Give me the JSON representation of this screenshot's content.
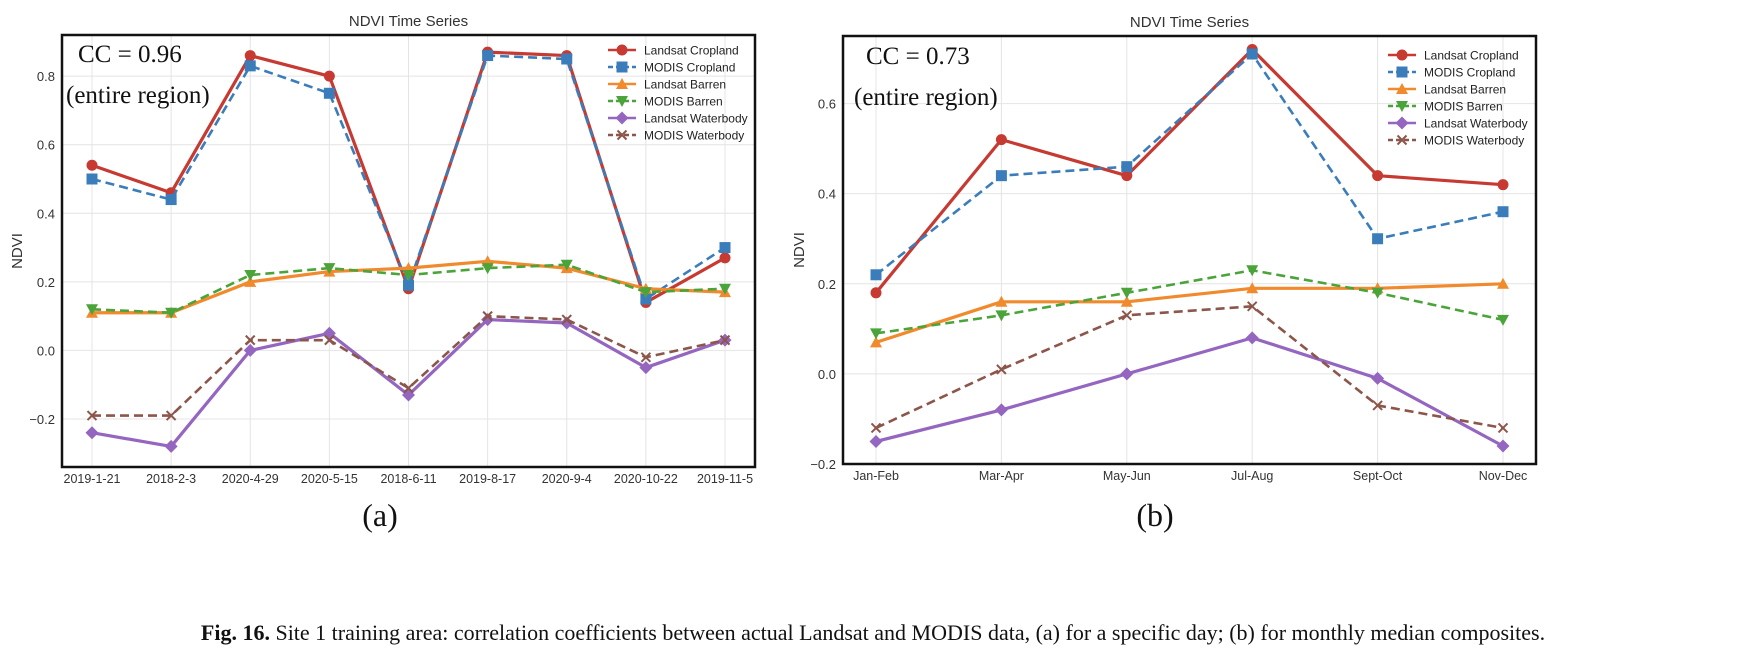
{
  "colors": {
    "landsat_cropland": "#c63a32",
    "modis_cropland": "#3b7dbb",
    "landsat_barren": "#f08a2c",
    "modis_barren": "#4aa43a",
    "landsat_waterbody": "#9466c0",
    "modis_waterbody": "#8c564b"
  },
  "caption": {
    "label": "Fig. 16.",
    "text": "Site 1 training area: correlation coefficients between actual Landsat and MODIS data, (a) for a specific day; (b) for monthly median composites."
  },
  "chart_data": [
    {
      "type": "line",
      "panel_label": "(a)",
      "title": "NDVI Time Series",
      "ylabel": "NDVI",
      "xlabel": "",
      "ylim": [
        -0.34,
        0.92
      ],
      "yticks": [
        -0.2,
        0.0,
        0.2,
        0.4,
        0.6,
        0.8
      ],
      "ytick_labels": [
        "−0.2",
        "0.0",
        "0.2",
        "0.4",
        "0.6",
        "0.8"
      ],
      "grid": true,
      "legend_position": "top-right",
      "annotation": [
        "CC = 0.96",
        "(entire region)"
      ],
      "categories": [
        "2019-1-21",
        "2018-2-3",
        "2020-4-29",
        "2020-5-15",
        "2018-6-11",
        "2019-8-17",
        "2020-9-4",
        "2020-10-22",
        "2019-11-5"
      ],
      "series": [
        {
          "name": "Landsat Cropland",
          "color": "#c63a32",
          "marker": "circle",
          "dash": "solid",
          "values": [
            0.54,
            0.46,
            0.86,
            0.8,
            0.18,
            0.87,
            0.86,
            0.14,
            0.27
          ]
        },
        {
          "name": "MODIS Cropland",
          "color": "#3b7dbb",
          "marker": "square",
          "dash": "dashed",
          "values": [
            0.5,
            0.44,
            0.83,
            0.75,
            0.19,
            0.86,
            0.85,
            0.15,
            0.3
          ]
        },
        {
          "name": "Landsat Barren",
          "color": "#f08a2c",
          "marker": "triangle-up",
          "dash": "solid",
          "values": [
            0.11,
            0.11,
            0.2,
            0.23,
            0.24,
            0.26,
            0.24,
            0.18,
            0.17
          ]
        },
        {
          "name": "MODIS Barren",
          "color": "#4aa43a",
          "marker": "triangle-down",
          "dash": "dashed",
          "values": [
            0.12,
            0.11,
            0.22,
            0.24,
            0.22,
            0.24,
            0.25,
            0.17,
            0.18
          ]
        },
        {
          "name": "Landsat Waterbody",
          "color": "#9466c0",
          "marker": "diamond",
          "dash": "solid",
          "values": [
            -0.24,
            -0.28,
            0.0,
            0.05,
            -0.13,
            0.09,
            0.08,
            -0.05,
            0.03
          ]
        },
        {
          "name": "MODIS Waterbody",
          "color": "#8c564b",
          "marker": "x",
          "dash": "dashed",
          "values": [
            -0.19,
            -0.19,
            0.03,
            0.03,
            -0.11,
            0.1,
            0.09,
            -0.02,
            0.03
          ]
        }
      ]
    },
    {
      "type": "line",
      "panel_label": "(b)",
      "title": "NDVI Time Series",
      "ylabel": "NDVI",
      "xlabel": "",
      "ylim": [
        -0.2,
        0.75
      ],
      "yticks": [
        -0.2,
        0.0,
        0.2,
        0.4,
        0.6
      ],
      "ytick_labels": [
        "−0.2",
        "0.0",
        "0.2",
        "0.4",
        "0.6"
      ],
      "grid": true,
      "legend_position": "top-right",
      "annotation": [
        "CC = 0.73",
        "(entire region)"
      ],
      "categories": [
        "Jan-Feb",
        "Mar-Apr",
        "May-Jun",
        "Jul-Aug",
        "Sept-Oct",
        "Nov-Dec"
      ],
      "series": [
        {
          "name": "Landsat Cropland",
          "color": "#c63a32",
          "marker": "circle",
          "dash": "solid",
          "values": [
            0.18,
            0.52,
            0.44,
            0.72,
            0.44,
            0.42
          ]
        },
        {
          "name": "MODIS Cropland",
          "color": "#3b7dbb",
          "marker": "square",
          "dash": "dashed",
          "values": [
            0.22,
            0.44,
            0.46,
            0.71,
            0.3,
            0.36
          ]
        },
        {
          "name": "Landsat Barren",
          "color": "#f08a2c",
          "marker": "triangle-up",
          "dash": "solid",
          "values": [
            0.07,
            0.16,
            0.16,
            0.19,
            0.19,
            0.2
          ]
        },
        {
          "name": "MODIS Barren",
          "color": "#4aa43a",
          "marker": "triangle-down",
          "dash": "dashed",
          "values": [
            0.09,
            0.13,
            0.18,
            0.23,
            0.18,
            0.12
          ]
        },
        {
          "name": "Landsat Waterbody",
          "color": "#9466c0",
          "marker": "diamond",
          "dash": "solid",
          "values": [
            -0.15,
            -0.08,
            0.0,
            0.08,
            -0.01,
            -0.16
          ]
        },
        {
          "name": "MODIS Waterbody",
          "color": "#8c564b",
          "marker": "x",
          "dash": "dashed",
          "values": [
            -0.12,
            0.01,
            0.13,
            0.15,
            -0.07,
            -0.12
          ]
        }
      ]
    }
  ]
}
